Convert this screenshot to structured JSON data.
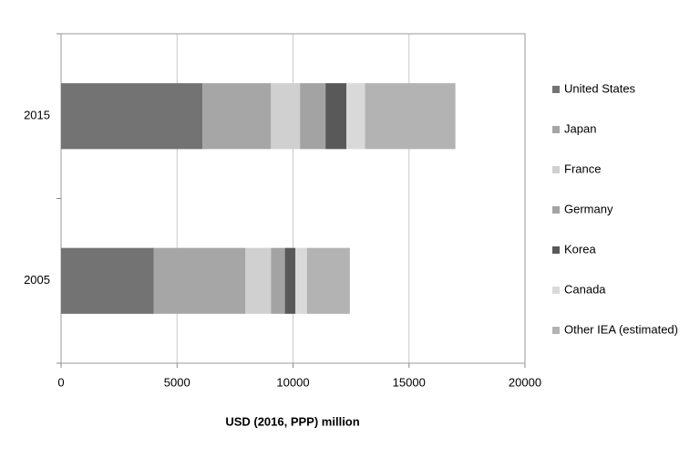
{
  "chart_data": {
    "type": "stacked_barh",
    "x_label": "USD (2016, PPP) million",
    "categories": [
      "2015",
      "2005"
    ],
    "series": [
      {
        "name": "United States",
        "color": "#737373",
        "values": [
          6100,
          4000
        ]
      },
      {
        "name": "Japan",
        "color": "#a6a6a6",
        "values": [
          2950,
          3950
        ]
      },
      {
        "name": "France",
        "color": "#d0d0d0",
        "values": [
          1250,
          1100
        ]
      },
      {
        "name": "Germany",
        "color": "#a3a3a3",
        "values": [
          1100,
          600
        ]
      },
      {
        "name": "Korea",
        "color": "#595959",
        "values": [
          900,
          450
        ]
      },
      {
        "name": "Canada",
        "color": "#d9d9d9",
        "values": [
          800,
          500
        ]
      },
      {
        "name": "Other IEA (estimated)",
        "color": "#b3b3b3",
        "values": [
          3900,
          1850
        ]
      }
    ],
    "xlim": [
      0,
      20000
    ],
    "xticks": [
      0,
      5000,
      10000,
      15000,
      20000
    ],
    "grid": true
  }
}
